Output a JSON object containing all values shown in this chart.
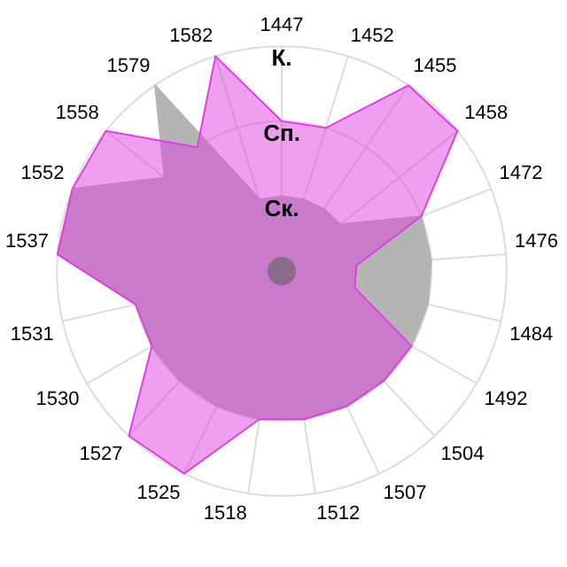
{
  "chart_data": {
    "type": "radar",
    "categories": [
      "1447",
      "1452",
      "1455",
      "1458",
      "1472",
      "1476",
      "1484",
      "1492",
      "1504",
      "1507",
      "1512",
      "1518",
      "1525",
      "1527",
      "1530",
      "1531",
      "1537",
      "1552",
      "1558",
      "1579",
      "1582"
    ],
    "ylim": [
      0,
      3
    ],
    "yticks": [
      {
        "value": 1,
        "label": "Ск."
      },
      {
        "value": 2,
        "label": "Сп."
      },
      {
        "value": 3,
        "label": "К."
      }
    ],
    "grid": true,
    "legend": false,
    "marker": "none",
    "series": [
      {
        "color": "#b4b4b4",
        "values": [
          1,
          1,
          1,
          1,
          2,
          2,
          2,
          2,
          2,
          2,
          2,
          2,
          2,
          2,
          2,
          2,
          3,
          3,
          2,
          3,
          1
        ]
      },
      {
        "color": "#e040e0",
        "values": [
          2,
          2,
          3,
          3,
          2,
          1,
          1,
          2,
          2,
          2,
          2,
          2,
          3,
          3,
          2,
          2,
          3,
          3,
          3,
          2,
          3
        ]
      }
    ]
  }
}
